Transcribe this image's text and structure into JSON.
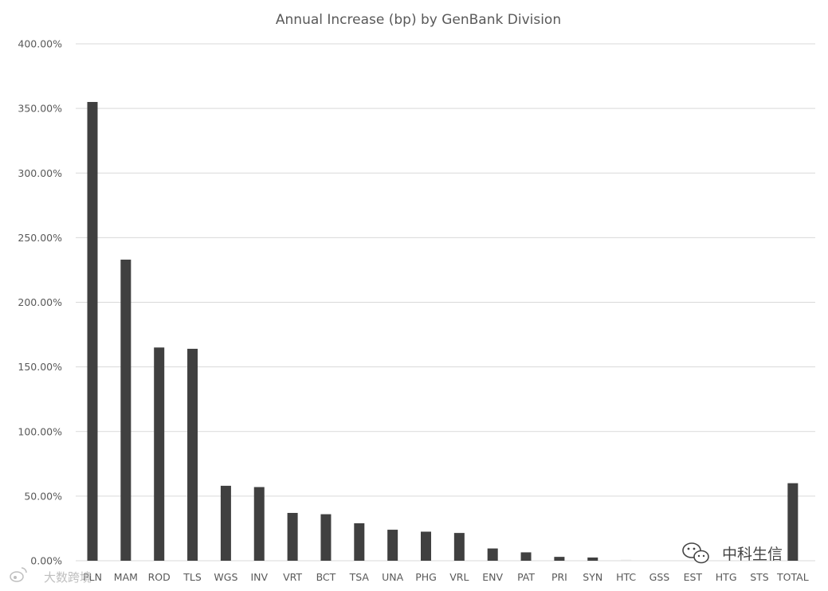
{
  "chart_data": {
    "type": "bar",
    "title": "Annual Increase (bp) by GenBank Division",
    "xlabel": "",
    "ylabel": "",
    "ylim": [
      0,
      400
    ],
    "y_tick_labels": [
      "0.00%",
      "50.00%",
      "100.00%",
      "150.00%",
      "200.00%",
      "250.00%",
      "300.00%",
      "350.00%",
      "400.00%"
    ],
    "grid": true,
    "legend": "none",
    "categories": [
      "PLN",
      "MAM",
      "ROD",
      "TLS",
      "WGS",
      "INV",
      "VRT",
      "BCT",
      "TSA",
      "UNA",
      "PHG",
      "VRL",
      "ENV",
      "PAT",
      "PRI",
      "SYN",
      "HTC",
      "GSS",
      "EST",
      "HTG",
      "STS",
      "TOTAL"
    ],
    "values": [
      355,
      233,
      165,
      164,
      58,
      57,
      37,
      36,
      29,
      24,
      22.5,
      21.5,
      9.5,
      6.5,
      3,
      2.5,
      0.8,
      0,
      0,
      0,
      0,
      60
    ],
    "colors": {
      "bar": "#404040",
      "faint_bar": "#e6e6e6"
    }
  },
  "watermarks": {
    "left_text": "大数跨境",
    "right_text": "中科生信"
  },
  "icons": {
    "left": "weibo-icon",
    "right": "wechat-icon"
  }
}
